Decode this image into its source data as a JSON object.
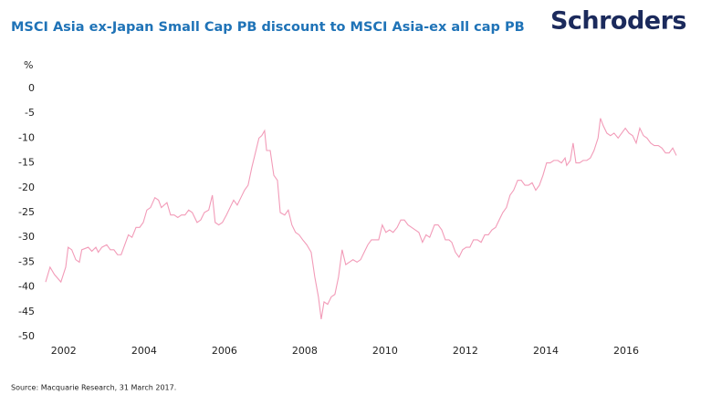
{
  "chart_data": {
    "type": "line",
    "title": "MSCI Asia ex-Japan Small Cap PB discount to MSCI Asia-ex all cap PB",
    "logo": "Schroders",
    "y_label": "%",
    "source": "Source: Macquarie Research, 31 March 2017.",
    "xlim": [
      2001.55,
      2017.25
    ],
    "xticks": [
      2002,
      2004,
      2006,
      2008,
      2010,
      2012,
      2014,
      2016
    ],
    "ylim": [
      -50,
      0
    ],
    "yticks": [
      0,
      -5,
      -10,
      -15,
      -20,
      -25,
      -30,
      -35,
      -40,
      -45,
      -50
    ],
    "grid": false,
    "series": [
      {
        "name": "PB discount",
        "color": "#f29bb8",
        "x": [
          2001.55,
          2001.66,
          2001.77,
          2001.93,
          2002.05,
          2002.11,
          2002.2,
          2002.3,
          2002.39,
          2002.45,
          2002.61,
          2002.7,
          2002.8,
          2002.86,
          2002.95,
          2003.07,
          2003.16,
          2003.25,
          2003.34,
          2003.43,
          2003.52,
          2003.61,
          2003.7,
          2003.8,
          2003.89,
          2003.98,
          2004.07,
          2004.16,
          2004.27,
          2004.36,
          2004.43,
          2004.57,
          2004.66,
          2004.75,
          2004.84,
          2004.93,
          2005.02,
          2005.11,
          2005.2,
          2005.32,
          2005.41,
          2005.5,
          2005.61,
          2005.7,
          2005.77,
          2005.86,
          2005.95,
          2006.05,
          2006.14,
          2006.23,
          2006.32,
          2006.41,
          2006.5,
          2006.59,
          2006.68,
          2006.77,
          2006.86,
          2006.93,
          2007.0,
          2007.05,
          2007.14,
          2007.23,
          2007.32,
          2007.39,
          2007.5,
          2007.59,
          2007.68,
          2007.77,
          2007.86,
          2007.95,
          2008.05,
          2008.16,
          2008.25,
          2008.34,
          2008.41,
          2008.48,
          2008.57,
          2008.66,
          2008.75,
          2008.84,
          2008.93,
          2009.02,
          2009.11,
          2009.2,
          2009.3,
          2009.39,
          2009.48,
          2009.57,
          2009.66,
          2009.75,
          2009.84,
          2009.93,
          2010.02,
          2010.11,
          2010.2,
          2010.3,
          2010.39,
          2010.48,
          2010.57,
          2010.66,
          2010.75,
          2010.84,
          2010.93,
          2011.02,
          2011.11,
          2011.23,
          2011.32,
          2011.41,
          2011.5,
          2011.59,
          2011.66,
          2011.75,
          2011.84,
          2011.93,
          2012.02,
          2012.11,
          2012.2,
          2012.3,
          2012.39,
          2012.48,
          2012.57,
          2012.66,
          2012.75,
          2012.84,
          2012.93,
          2013.02,
          2013.11,
          2013.2,
          2013.3,
          2013.39,
          2013.48,
          2013.57,
          2013.66,
          2013.75,
          2013.84,
          2013.93,
          2014.02,
          2014.11,
          2014.2,
          2014.3,
          2014.39,
          2014.48,
          2014.52,
          2014.61,
          2014.68,
          2014.75,
          2014.84,
          2014.93,
          2015.02,
          2015.11,
          2015.2,
          2015.3,
          2015.36,
          2015.43,
          2015.52,
          2015.61,
          2015.7,
          2015.8,
          2015.89,
          2015.98,
          2016.07,
          2016.16,
          2016.25,
          2016.34,
          2016.43,
          2016.52,
          2016.61,
          2016.7,
          2016.8,
          2016.89,
          2016.98,
          2017.07,
          2017.16,
          2017.25
        ],
        "values": [
          -39,
          -36,
          -37.5,
          -39,
          -36,
          -32,
          -32.5,
          -34.5,
          -35,
          -32.5,
          -32,
          -32.8,
          -32,
          -33,
          -32,
          -31.5,
          -32.5,
          -32.5,
          -33.5,
          -33.5,
          -31.5,
          -29.5,
          -30,
          -28,
          -28,
          -27,
          -24.5,
          -24,
          -22,
          -22.5,
          -24,
          -23,
          -25.5,
          -25.5,
          -26,
          -25.5,
          -25.5,
          -24.5,
          -25,
          -27,
          -26.5,
          -25,
          -24.5,
          -21.5,
          -27,
          -27.5,
          -27,
          -25.5,
          -24,
          -22.5,
          -23.5,
          -22,
          -20.5,
          -19.5,
          -16,
          -13,
          -10,
          -9.5,
          -8.5,
          -12.5,
          -12.5,
          -17.5,
          -18.5,
          -25,
          -25.5,
          -24.5,
          -27.5,
          -29,
          -29.5,
          -30.5,
          -31.5,
          -33,
          -38,
          -42,
          -46.5,
          -43,
          -43.5,
          -42,
          -41.5,
          -38,
          -32.5,
          -35.5,
          -35,
          -34.5,
          -35,
          -34.5,
          -33,
          -31.5,
          -30.5,
          -30.5,
          -30.5,
          -27.5,
          -29,
          -28.5,
          -29,
          -28,
          -26.5,
          -26.5,
          -27.5,
          -28,
          -28.5,
          -29,
          -31,
          -29.5,
          -30,
          -27.5,
          -27.5,
          -28.5,
          -30.5,
          -30.5,
          -31,
          -33,
          -34,
          -32.5,
          -32,
          -32,
          -30.5,
          -30.5,
          -31,
          -29.5,
          -29.5,
          -28.5,
          -28,
          -26.5,
          -25,
          -24,
          -21.5,
          -20.5,
          -18.5,
          -18.5,
          -19.5,
          -19.5,
          -19,
          -20.5,
          -19.5,
          -17.5,
          -15,
          -15,
          -14.5,
          -14.5,
          -15,
          -14,
          -15.5,
          -14.5,
          -11,
          -15,
          -15,
          -14.5,
          -14.5,
          -14,
          -12.5,
          -10,
          -6,
          -7.5,
          -9,
          -9.5,
          -9,
          -10,
          -9,
          -8,
          -9,
          -9.5,
          -11,
          -8,
          -9.5,
          -10,
          -11,
          -11.5,
          -11.5,
          -12,
          -13,
          -13,
          -12,
          -13.5
        ]
      }
    ]
  }
}
